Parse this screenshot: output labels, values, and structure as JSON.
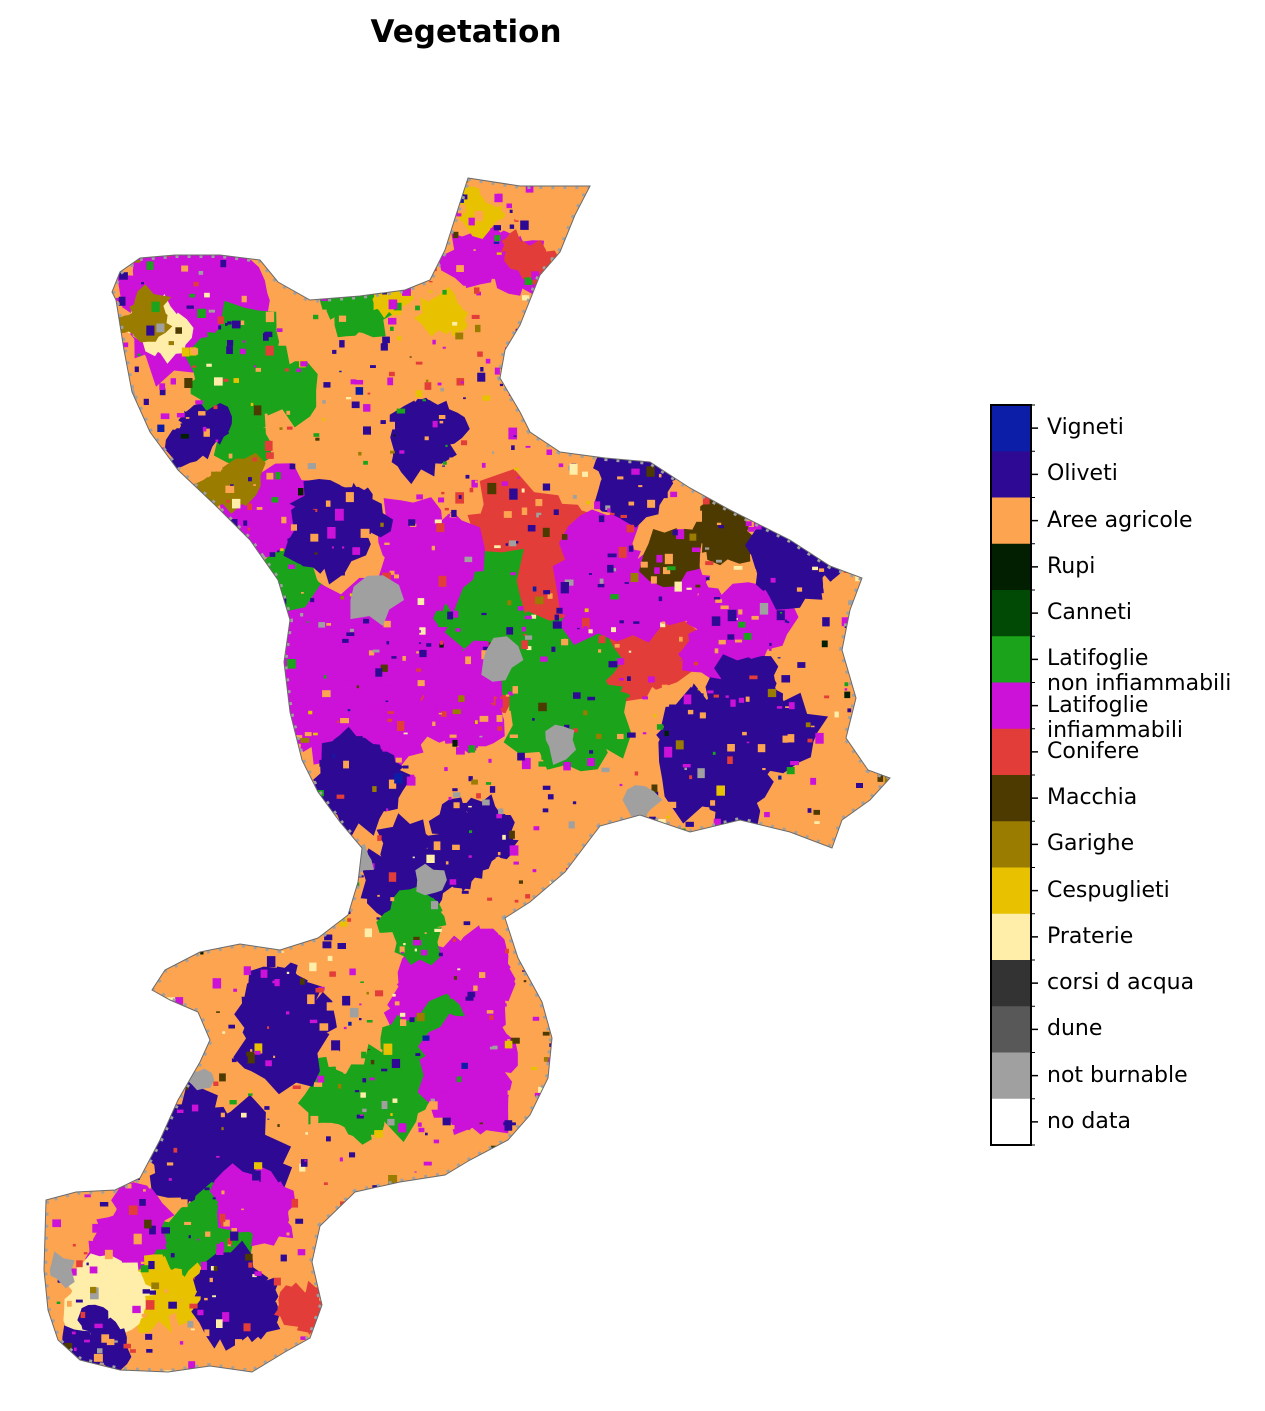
{
  "title": "Vegetation",
  "legend": {
    "items": [
      {
        "label": "Vigneti",
        "color": "#0c1ea8"
      },
      {
        "label": "Oliveti",
        "color": "#2e0a94"
      },
      {
        "label": "Aree agricole",
        "color": "#fda451"
      },
      {
        "label": "Rupi",
        "color": "#021f02"
      },
      {
        "label": "Canneti",
        "color": "#004a05"
      },
      {
        "label": "Latifoglie\nnon infiammabili",
        "color": "#1ba31b"
      },
      {
        "label": "Latifoglie\ninfiammabili",
        "color": "#cc11d8"
      },
      {
        "label": "Conifere",
        "color": "#e33d3a"
      },
      {
        "label": "Macchia",
        "color": "#4d3a00"
      },
      {
        "label": "Garighe",
        "color": "#9a7c00"
      },
      {
        "label": "Cespuglieti",
        "color": "#e8c200"
      },
      {
        "label": "Praterie",
        "color": "#ffeeaa"
      },
      {
        "label": "corsi d acqua",
        "color": "#333333"
      },
      {
        "label": "dune",
        "color": "#585858"
      },
      {
        "label": "not burnable",
        "color": "#a0a0a0"
      },
      {
        "label": "no data",
        "color": "#ffffff"
      }
    ]
  }
}
